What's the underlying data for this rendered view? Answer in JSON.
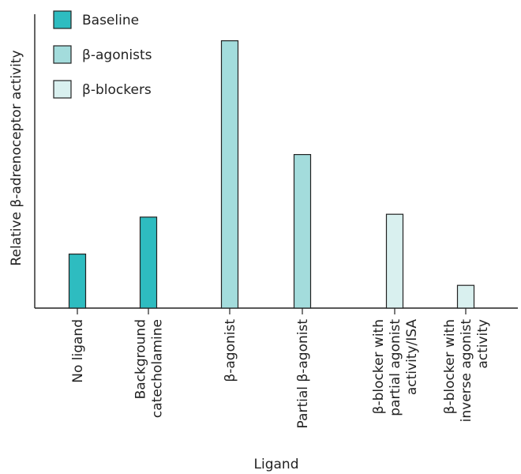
{
  "chart_data": {
    "type": "bar",
    "title": "",
    "xlabel": "Ligand",
    "ylabel": "Relative β-adrenoceptor activity",
    "y_ticks_shown": false,
    "ylim": [
      0,
      10
    ],
    "grid": false,
    "legend_position": "top-left",
    "legend": [
      {
        "name": "Baseline",
        "color": "#2ebcc0"
      },
      {
        "name": "β-agonists",
        "color": "#a3dcdc"
      },
      {
        "name": "β-blockers",
        "color": "#d9f0ef"
      }
    ],
    "categories": [
      [
        "No ligand"
      ],
      [
        "Background",
        "catecholamine"
      ],
      [
        "β-agonist"
      ],
      [
        "Partial β-agonist"
      ],
      [
        "β-blocker with",
        "partial agonist",
        "activity/ISA"
      ],
      [
        "β-blocker with",
        "inverse agonist",
        "activity"
      ]
    ],
    "values": [
      1.9,
      3.2,
      9.4,
      5.4,
      3.3,
      0.8
    ],
    "series_index": [
      0,
      0,
      1,
      1,
      2,
      2
    ]
  }
}
